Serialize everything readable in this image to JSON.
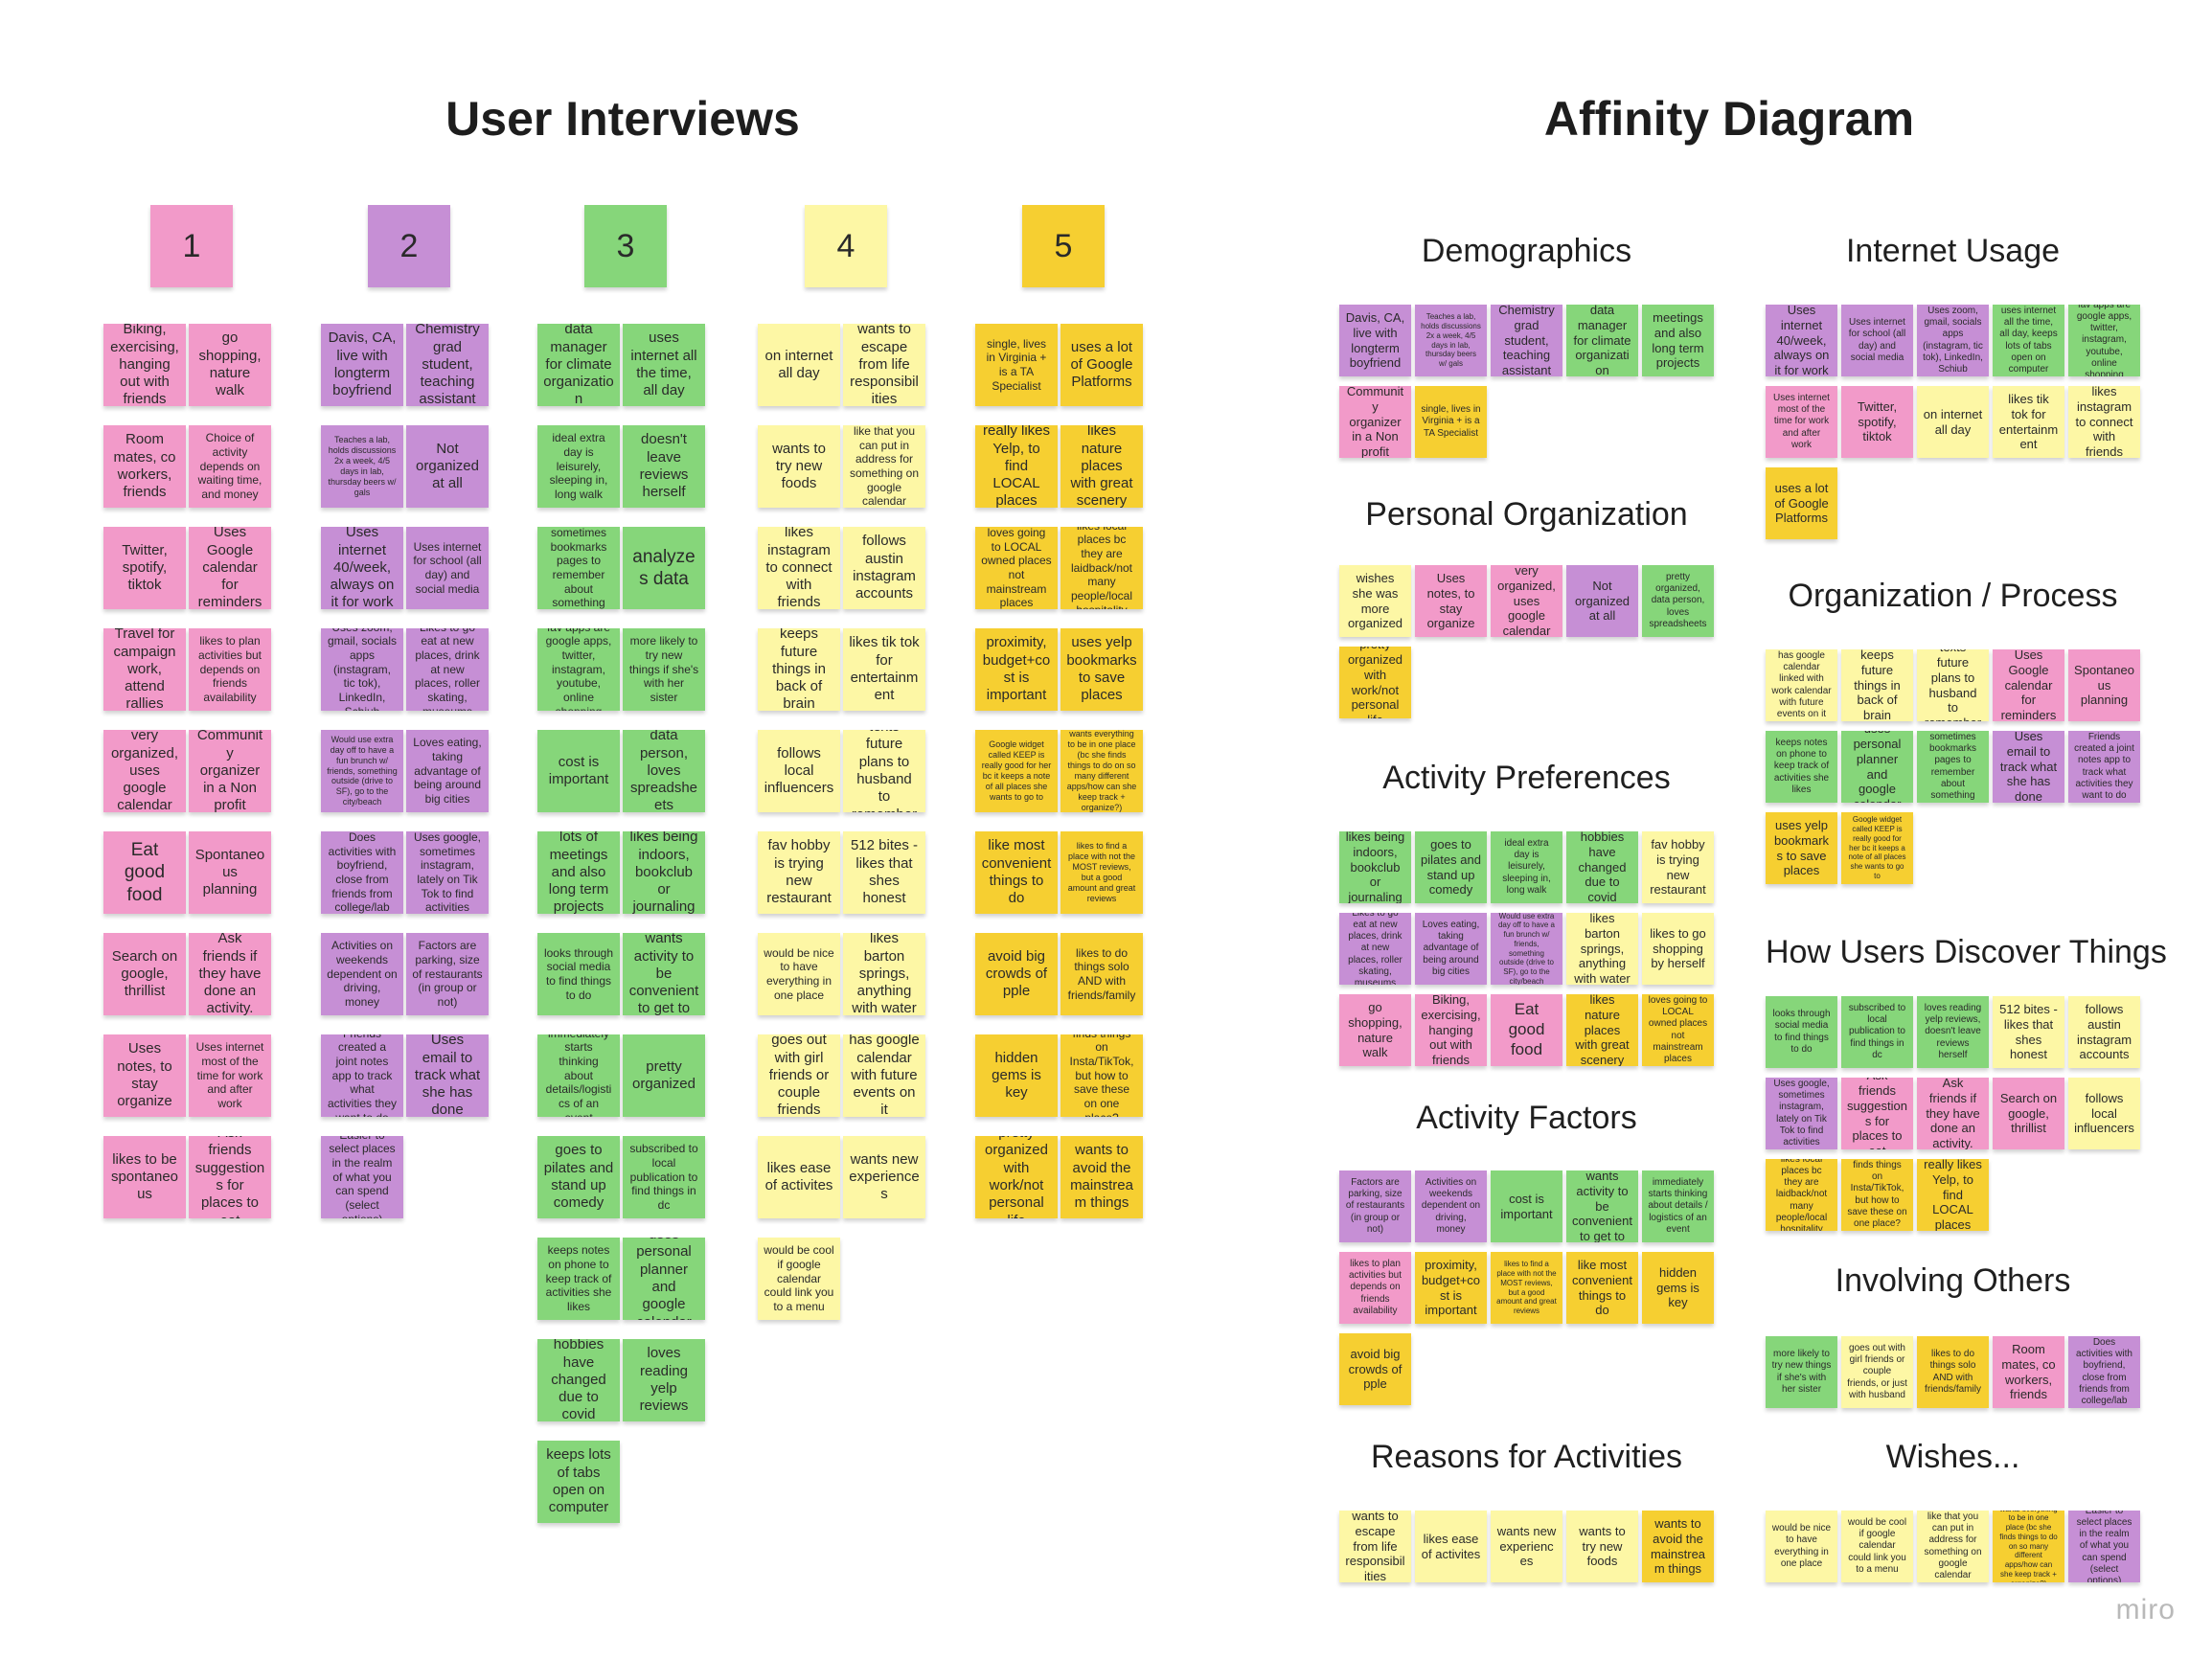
{
  "titles": {
    "left": "User Interviews",
    "right": "Affinity Diagram"
  },
  "colors": {
    "pink": "#f29ac9",
    "purple": "#c68fd5",
    "green": "#86d67a",
    "light_yellow": "#fdf7a5",
    "yellow": "#f6cf31"
  },
  "interviews": [
    {
      "number": "1",
      "color": "pink",
      "notes": [
        "Biking, exercising, hanging out with friends",
        "go shopping, nature walk",
        "Room mates, co workers, friends",
        "Choice of activity depends on waiting time, and money",
        "Twitter, spotify, tiktok",
        "Uses Google calendar for reminders",
        "Travel for campaign work, attend rallies",
        "likes to plan activities but depends on friends availability",
        "very organized, uses google calendar",
        "Community organizer in a Non profit",
        "Eat good food",
        "Spontaneous planning",
        "Search on google, thrillist",
        "Ask friends if they have done an activity.",
        "Uses notes, to stay organize",
        "Uses internet most of the time for work and after work",
        "likes to be spontaneous",
        "Ask friends suggestions for places to eat"
      ]
    },
    {
      "number": "2",
      "color": "purple",
      "notes": [
        "Davis, CA, live with longterm boyfriend",
        "Chemistry grad student, teaching assistant",
        "Teaches a lab, holds discussions 2x a week, 4/5 days in lab, thursday beers w/ gals",
        "Not organized at all",
        "Uses internet 40/week, always on it for work",
        "Uses internet for school (all day) and social media",
        "Uses zoom, gmail, socials apps (instagram, tic tok), LinkedIn, Schiub",
        "Likes to go eat at new places, drink at new places, roller skating, museums",
        "Would use extra day off to have a fun brunch w/ friends, something outside (drive to SF), go to the city/beach",
        "Loves eating, taking advantage of being around big cities",
        "Does activities with boyfriend, close from friends from college/lab",
        "Uses google, sometimes instagram, lately on Tik Tok to find activities",
        "Activities on weekends dependent on driving, money",
        "Factors are parking, size of restaurants (in group or not)",
        "Friends created a joint notes app to track what activities they want to do",
        "Uses email to track what she has done",
        "Easier to select places in the realm of what you can spend (select options)"
      ]
    },
    {
      "number": "3",
      "color": "green",
      "notes": [
        "data manager for climate organization",
        "uses internet all the time, all day",
        "ideal extra day is leisurely, sleeping in, long walk",
        "doesn't leave reviews herself",
        "sometimes bookmarks pages to remember about something",
        "analyzes data",
        "fav apps are google apps, twitter, instagram, youtube, online shopping",
        "more likely to try new things if she's with her sister",
        "cost is important",
        "data person, loves spreadsheets",
        "lots of meetings and also long term projects",
        "likes being indoors, bookclub or journaling",
        "looks through social media to find things to do",
        "wants activity to be convenient to get to",
        "immediately starts thinking about details/logistics of an event",
        "pretty organized",
        "goes to pilates and stand up comedy",
        "subscribed to local publication to find things in dc",
        "keeps notes on phone to keep track of activities she likes",
        "uses personal planner and google calendar",
        "hobbies have changed due to covid",
        "loves reading yelp reviews",
        "keeps lots of tabs open on computer"
      ]
    },
    {
      "number": "4",
      "color": "light_yellow",
      "notes": [
        "on internet all day",
        "wants to escape from life responsibilities",
        "wants to try new foods",
        "like that you can put in address for something on google calendar",
        "likes instagram to connect with friends",
        "follows austin instagram accounts",
        "keeps future things in back of brain",
        "likes tik tok for entertainment",
        "follows local influencers",
        "texts future plans to husband to remember",
        "fav hobby is trying new restaurant",
        "512 bites - likes that shes honest",
        "would be nice to have everything in one place",
        "likes barton springs, anything with water",
        "goes out with girl friends or couple friends",
        "has google calendar with future events on it",
        "likes ease of activites",
        "wants new experiences",
        "would be cool if google calendar could link you to a menu"
      ]
    },
    {
      "number": "5",
      "color": "yellow",
      "notes": [
        "single, lives in Virginia + is a TA Specialist",
        "uses a lot of Google Platforms",
        "really likes Yelp, to find LOCAL places",
        "likes nature places with great scenery",
        "loves going to LOCAL owned places not mainstream places",
        "likes local places bc they are laidback/not many people/local hospitality",
        "proximity, budget+cost is important",
        "uses yelp bookmarks to save places",
        "Google widget called KEEP is really good for her bc it keeps a note of all places she wants to go to",
        "wants everything to be in one place (bc she finds things to do on so many different apps/how can she keep track + organize?)",
        "like most convenient things to do",
        "likes to find a place with not the MOST reviews, but a good amount and great reviews",
        "avoid big crowds of pple",
        "likes to do things solo AND with friends/family",
        "hidden gems is key",
        "finds things on Insta/TikTok, but how to save these on one place?",
        "pretty organized with work/not personal life",
        "wants to avoid the mainstream things"
      ]
    }
  ],
  "affinity_groups": [
    {
      "title": "Demographics",
      "notes": [
        {
          "text": "Davis, CA, live with longterm boyfriend",
          "color": "purple"
        },
        {
          "text": "Teaches a lab, holds discussions 2x a week, 4/5 days in lab, thursday beers w/ gals",
          "color": "purple"
        },
        {
          "text": "Chemistry grad student, teaching assistant",
          "color": "purple"
        },
        {
          "text": "data manager for climate organization",
          "color": "green"
        },
        {
          "text": "meetings and also long term projects",
          "color": "green"
        },
        {
          "text": "Community organizer in a Non profit",
          "color": "pink"
        },
        {
          "text": "single, lives in Virginia + is a TA Specialist",
          "color": "yellow"
        }
      ]
    },
    {
      "title": "Personal Organization",
      "notes": [
        {
          "text": "wishes she was more organized",
          "color": "light_yellow"
        },
        {
          "text": "Uses notes, to stay organize",
          "color": "pink"
        },
        {
          "text": "very organized, uses google calendar",
          "color": "pink"
        },
        {
          "text": "Not organized at all",
          "color": "purple"
        },
        {
          "text": "pretty organized, data person, loves spreadsheets",
          "color": "green"
        },
        {
          "text": "pretty organized with work/not personal life",
          "color": "yellow"
        }
      ]
    },
    {
      "title": "Activity Preferences",
      "notes": [
        {
          "text": "likes being indoors, bookclub or journaling",
          "color": "green"
        },
        {
          "text": "goes to pilates and stand up comedy",
          "color": "green"
        },
        {
          "text": "ideal extra day is leisurely, sleeping in, long walk",
          "color": "green"
        },
        {
          "text": "hobbies have changed due to covid",
          "color": "green"
        },
        {
          "text": "fav hobby is trying new restaurant",
          "color": "light_yellow"
        },
        {
          "text": "Likes to go eat at new places, drink at new places, roller skating, museums",
          "color": "purple"
        },
        {
          "text": "Loves eating, taking advantage of being around big cities",
          "color": "purple"
        },
        {
          "text": "Would use extra day off to have a fun brunch w/ friends, something outside (drive to SF), go to the city/beach",
          "color": "purple"
        },
        {
          "text": "likes barton springs, anything with water",
          "color": "light_yellow"
        },
        {
          "text": "likes to go shopping by herself",
          "color": "light_yellow"
        },
        {
          "text": "go shopping, nature walk",
          "color": "pink"
        },
        {
          "text": "Biking, exercising, hanging out with friends",
          "color": "pink"
        },
        {
          "text": "Eat good food",
          "color": "pink"
        },
        {
          "text": "likes nature places with great scenery",
          "color": "yellow"
        },
        {
          "text": "loves going to LOCAL owned places not mainstream places",
          "color": "yellow"
        }
      ]
    },
    {
      "title": "Activity Factors",
      "notes": [
        {
          "text": "Factors are parking, size of restaurants (in group or not)",
          "color": "purple"
        },
        {
          "text": "Activities on weekends dependent on driving, money",
          "color": "purple"
        },
        {
          "text": "cost is important",
          "color": "green"
        },
        {
          "text": "wants activity to be convenient to get to",
          "color": "green"
        },
        {
          "text": "immediately starts thinking about details / logistics of an event",
          "color": "green"
        },
        {
          "text": "likes to plan activities but depends on friends availability",
          "color": "pink"
        },
        {
          "text": "proximity, budget+cost is important",
          "color": "yellow"
        },
        {
          "text": "likes to find a place with not the MOST reviews, but a good amount and great reviews",
          "color": "yellow"
        },
        {
          "text": "like most convenient things to do",
          "color": "yellow"
        },
        {
          "text": "hidden gems is key",
          "color": "yellow"
        },
        {
          "text": "avoid big crowds of pple",
          "color": "yellow"
        }
      ]
    },
    {
      "title": "Reasons for Activities",
      "notes": [
        {
          "text": "wants to escape from life responsibilities",
          "color": "light_yellow"
        },
        {
          "text": "likes ease of activites",
          "color": "light_yellow"
        },
        {
          "text": "wants new experiences",
          "color": "light_yellow"
        },
        {
          "text": "wants to try new foods",
          "color": "light_yellow"
        },
        {
          "text": "wants to avoid the mainstream things",
          "color": "yellow"
        }
      ]
    },
    {
      "title": "Internet Usage",
      "notes": [
        {
          "text": "Uses internet 40/week, always on it for work",
          "color": "purple"
        },
        {
          "text": "Uses internet for school (all day) and social media",
          "color": "purple"
        },
        {
          "text": "Uses zoom, gmail, socials apps (instagram, tic tok), LinkedIn, Schiub",
          "color": "purple"
        },
        {
          "text": "uses internet all the time, all day, keeps lots of tabs open on computer",
          "color": "green"
        },
        {
          "text": "fav apps are google apps, twitter, instagram, youtube, online shopping",
          "color": "green"
        },
        {
          "text": "Uses internet most of the time for work and after work",
          "color": "pink"
        },
        {
          "text": "Twitter, spotify, tiktok",
          "color": "pink"
        },
        {
          "text": "on internet all day",
          "color": "light_yellow"
        },
        {
          "text": "likes tik tok for entertainment",
          "color": "light_yellow"
        },
        {
          "text": "likes instagram to connect with friends",
          "color": "light_yellow"
        },
        {
          "text": "uses a lot of Google Platforms",
          "color": "yellow"
        }
      ]
    },
    {
      "title": "Organization / Process",
      "notes": [
        {
          "text": "has google calendar linked with work calendar with future events on it",
          "color": "light_yellow"
        },
        {
          "text": "keeps future things in back of brain",
          "color": "light_yellow"
        },
        {
          "text": "texts future plans to husband to remember",
          "color": "light_yellow"
        },
        {
          "text": "Uses Google calendar for reminders",
          "color": "pink"
        },
        {
          "text": "Spontaneous planning",
          "color": "pink"
        },
        {
          "text": "keeps notes on phone to keep track of activities she likes",
          "color": "green"
        },
        {
          "text": "uses personal planner and google calendar",
          "color": "green"
        },
        {
          "text": "sometimes bookmarks pages to remember about something",
          "color": "green"
        },
        {
          "text": "Uses email to track what she has done",
          "color": "purple"
        },
        {
          "text": "Friends created a joint notes app to track what activities they want to do",
          "color": "purple"
        },
        {
          "text": "uses yelp bookmarks to save places",
          "color": "yellow"
        },
        {
          "text": "Google widget called KEEP is really good for her bc it keeps a note of all places she wants to go to",
          "color": "yellow"
        }
      ]
    },
    {
      "title": "How Users Discover Things",
      "notes": [
        {
          "text": "looks through social media to find things to do",
          "color": "green"
        },
        {
          "text": "subscribed to local publication to find things in dc",
          "color": "green"
        },
        {
          "text": "loves reading yelp reviews, doesn't leave reviews herself",
          "color": "green"
        },
        {
          "text": "512 bites - likes that shes honest",
          "color": "light_yellow"
        },
        {
          "text": "follows austin instagram accounts",
          "color": "light_yellow"
        },
        {
          "text": "Uses google, sometimes instagram, lately on Tik Tok to find activities",
          "color": "purple"
        },
        {
          "text": "Ask friends suggestions for places to eat",
          "color": "pink"
        },
        {
          "text": "Ask friends if they have done an activity.",
          "color": "pink"
        },
        {
          "text": "Search on google, thrillist",
          "color": "pink"
        },
        {
          "text": "follows local influencers",
          "color": "light_yellow"
        },
        {
          "text": "likes local places bc they are laidback/not many people/local hospitality",
          "color": "yellow"
        },
        {
          "text": "finds things on Insta/TikTok, but how to save these on one place?",
          "color": "yellow"
        },
        {
          "text": "really likes Yelp, to find LOCAL places",
          "color": "yellow"
        }
      ]
    },
    {
      "title": "Involving Others",
      "notes": [
        {
          "text": "more likely to try new things if she's with her sister",
          "color": "green"
        },
        {
          "text": "goes out with girl friends or couple friends, or just with husband",
          "color": "light_yellow"
        },
        {
          "text": "likes to do things solo AND with friends/family",
          "color": "yellow"
        },
        {
          "text": "Room mates, co workers, friends",
          "color": "pink"
        },
        {
          "text": "Does activities with boyfriend, close from friends from college/lab",
          "color": "purple"
        }
      ]
    },
    {
      "title": "Wishes...",
      "notes": [
        {
          "text": "would be nice to have everything in one place",
          "color": "light_yellow"
        },
        {
          "text": "would be cool if google calendar could link you to a menu",
          "color": "light_yellow"
        },
        {
          "text": "like that you can put in address for something on google calendar",
          "color": "light_yellow"
        },
        {
          "text": "wants everything to be in one place (bc she finds things to do on so many different apps/how can she keep track + organize?)",
          "color": "yellow"
        },
        {
          "text": "Easier to select places in the realm of what you can spend (select options)",
          "color": "purple"
        }
      ]
    }
  ],
  "logo": "miro"
}
